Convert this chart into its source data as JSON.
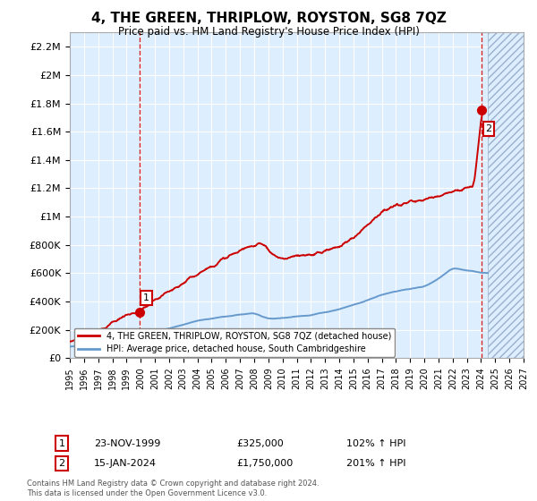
{
  "title": "4, THE GREEN, THRIPLOW, ROYSTON, SG8 7QZ",
  "subtitle": "Price paid vs. HM Land Registry's House Price Index (HPI)",
  "legend_line1": "4, THE GREEN, THRIPLOW, ROYSTON, SG8 7QZ (detached house)",
  "legend_line2": "HPI: Average price, detached house, South Cambridgeshire",
  "annotation1_date": "23-NOV-1999",
  "annotation1_price": "£325,000",
  "annotation1_hpi": "102% ↑ HPI",
  "annotation2_date": "15-JAN-2024",
  "annotation2_price": "£1,750,000",
  "annotation2_hpi": "201% ↑ HPI",
  "footer": "Contains HM Land Registry data © Crown copyright and database right 2024.\nThis data is licensed under the Open Government Licence v3.0.",
  "sale1_x": 1999.9,
  "sale1_y": 325000,
  "sale2_x": 2024.04,
  "sale2_y": 1750000,
  "xlim": [
    1995,
    2027
  ],
  "ylim": [
    0,
    2300000
  ],
  "yticks": [
    0,
    200000,
    400000,
    600000,
    800000,
    1000000,
    1200000,
    1400000,
    1600000,
    1800000,
    2000000,
    2200000
  ],
  "ytick_labels": [
    "£0",
    "£200K",
    "£400K",
    "£600K",
    "£800K",
    "£1M",
    "£1.2M",
    "£1.4M",
    "£1.6M",
    "£1.8M",
    "£2M",
    "£2.2M"
  ],
  "xticks": [
    1995,
    1996,
    1997,
    1998,
    1999,
    2000,
    2001,
    2002,
    2003,
    2004,
    2005,
    2006,
    2007,
    2008,
    2009,
    2010,
    2011,
    2012,
    2013,
    2014,
    2015,
    2016,
    2017,
    2018,
    2019,
    2020,
    2021,
    2022,
    2023,
    2024,
    2025,
    2026,
    2027
  ],
  "bg_color": "#ddeeff",
  "red_color": "#cc0000",
  "blue_color": "#6699cc",
  "grid_color": "#ffffff",
  "hatch_color": "#aabbdd"
}
